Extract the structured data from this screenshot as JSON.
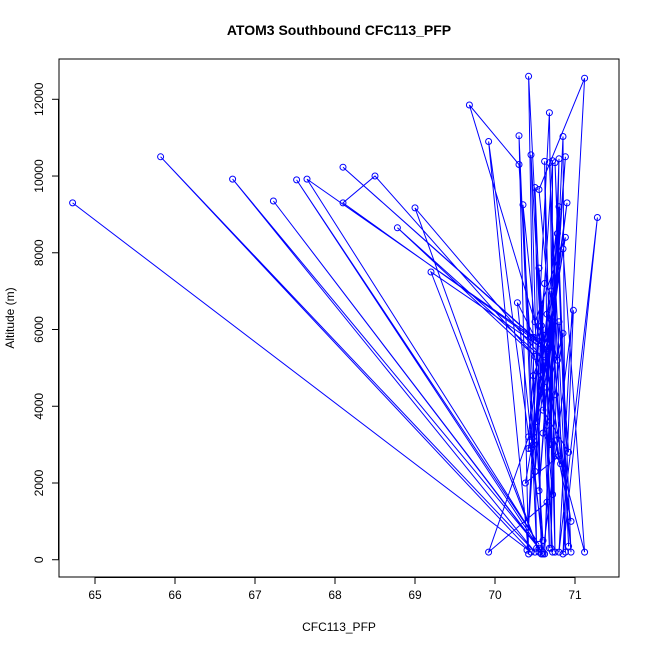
{
  "chart_data": {
    "type": "line",
    "title": "ATOM3 Southbound CFC113_PFP",
    "xlabel": "CFC113_PFP",
    "ylabel": "Altitude (m)",
    "xlim": [
      64.55,
      71.55
    ],
    "ylim": [
      -450,
      13050
    ],
    "xticks": [
      "65",
      "66",
      "67",
      "68",
      "69",
      "70",
      "71"
    ],
    "yticks": [
      "0",
      "2000",
      "4000",
      "6000",
      "8000",
      "10000",
      "12000"
    ],
    "grid": false,
    "legend": "none",
    "colors": {
      "series": "#0000ff",
      "axis": "#000000",
      "text": "#000000"
    },
    "marker": "open-circle",
    "series": [
      {
        "x": [
          64.72,
          70.45,
          65.82,
          70.5,
          66.72,
          70.55,
          67.23,
          70.6,
          67.52,
          70.55,
          67.65,
          70.48,
          68.1,
          70.65,
          68.1,
          68.5,
          70.5,
          68.78,
          70.62,
          69.0,
          70.55,
          69.2,
          70.6,
          69.68,
          70.3,
          70.6,
          69.92,
          70.42,
          70.3,
          70.52,
          70.42,
          70.72,
          70.45,
          70.58,
          70.5,
          70.68,
          70.62,
          70.75,
          70.68,
          70.4,
          70.72,
          70.7,
          70.8,
          70.62,
          70.85,
          70.88,
          70.68,
          70.92,
          70.75,
          70.95,
          70.55,
          71.12,
          70.8,
          71.28,
          70.85,
          70.98,
          70.6,
          70.28,
          70.52,
          70.35,
          70.48,
          70.42,
          70.62,
          70.5,
          70.78,
          70.55,
          70.88,
          70.65,
          70.45,
          70.72,
          70.6,
          70.82,
          70.7,
          70.48,
          70.8,
          70.65,
          69.92,
          70.42,
          70.48,
          70.6,
          70.72,
          70.85,
          71.12,
          70.75,
          70.95,
          70.58,
          70.8,
          70.38,
          70.68,
          70.52,
          70.9,
          70.62,
          70.55,
          70.7,
          70.65,
          70.78,
          70.5,
          70.88,
          70.45,
          70.58,
          70.72,
          70.8,
          70.92,
          70.6,
          70.85,
          70.75
        ],
        "y": [
          9300,
          200,
          10500,
          200,
          9920,
          300,
          9350,
          150,
          9900,
          400,
          9920,
          5800,
          10230,
          5500,
          9300,
          10000,
          5300,
          8650,
          5200,
          9170,
          200,
          7500,
          5500,
          11850,
          10300,
          500,
          10900,
          150,
          11050,
          300,
          12600,
          200,
          10550,
          150,
          9700,
          300,
          10380,
          200,
          11650,
          250,
          10400,
          300,
          10450,
          150,
          11030,
          200,
          10350,
          350,
          10350,
          200,
          9650,
          12550,
          200,
          8920,
          150,
          6500,
          200,
          6700,
          5700,
          9250,
          3000,
          2900,
          7200,
          2300,
          8500,
          1800,
          10500,
          3500,
          5800,
          6000,
          3300,
          2500,
          7000,
          3200,
          9200,
          1500,
          200,
          3200,
          4800,
          5500,
          6200,
          8100,
          200,
          3100,
          1000,
          6100,
          2700,
          2000,
          5600,
          3600,
          9300,
          4500,
          7600,
          3000,
          6400,
          5200,
          6200,
          8400,
          2900,
          4800,
          1700,
          6200,
          2800,
          3900,
          5900,
          4300
        ]
      }
    ]
  }
}
